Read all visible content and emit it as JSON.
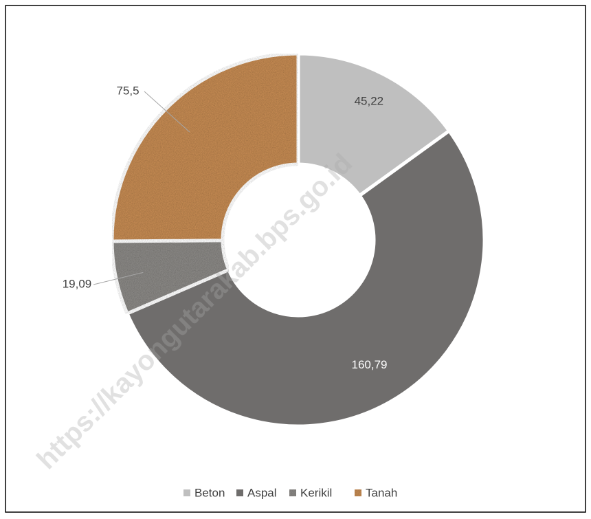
{
  "chart_data": {
    "type": "pie",
    "categories": [
      "Beton",
      "Aspal",
      "Kerikil",
      "Tanah"
    ],
    "values": [
      45.22,
      160.79,
      19.09,
      75.5
    ],
    "value_labels": [
      "45,22",
      "160,79",
      "19,09",
      "75,5"
    ],
    "colors": [
      "#bfbfbf",
      "#6f6d6c",
      "#8a8885",
      "#c48a52"
    ],
    "legend": "bottom"
  },
  "watermark": "https://kayongutarakab.bps.go.id"
}
